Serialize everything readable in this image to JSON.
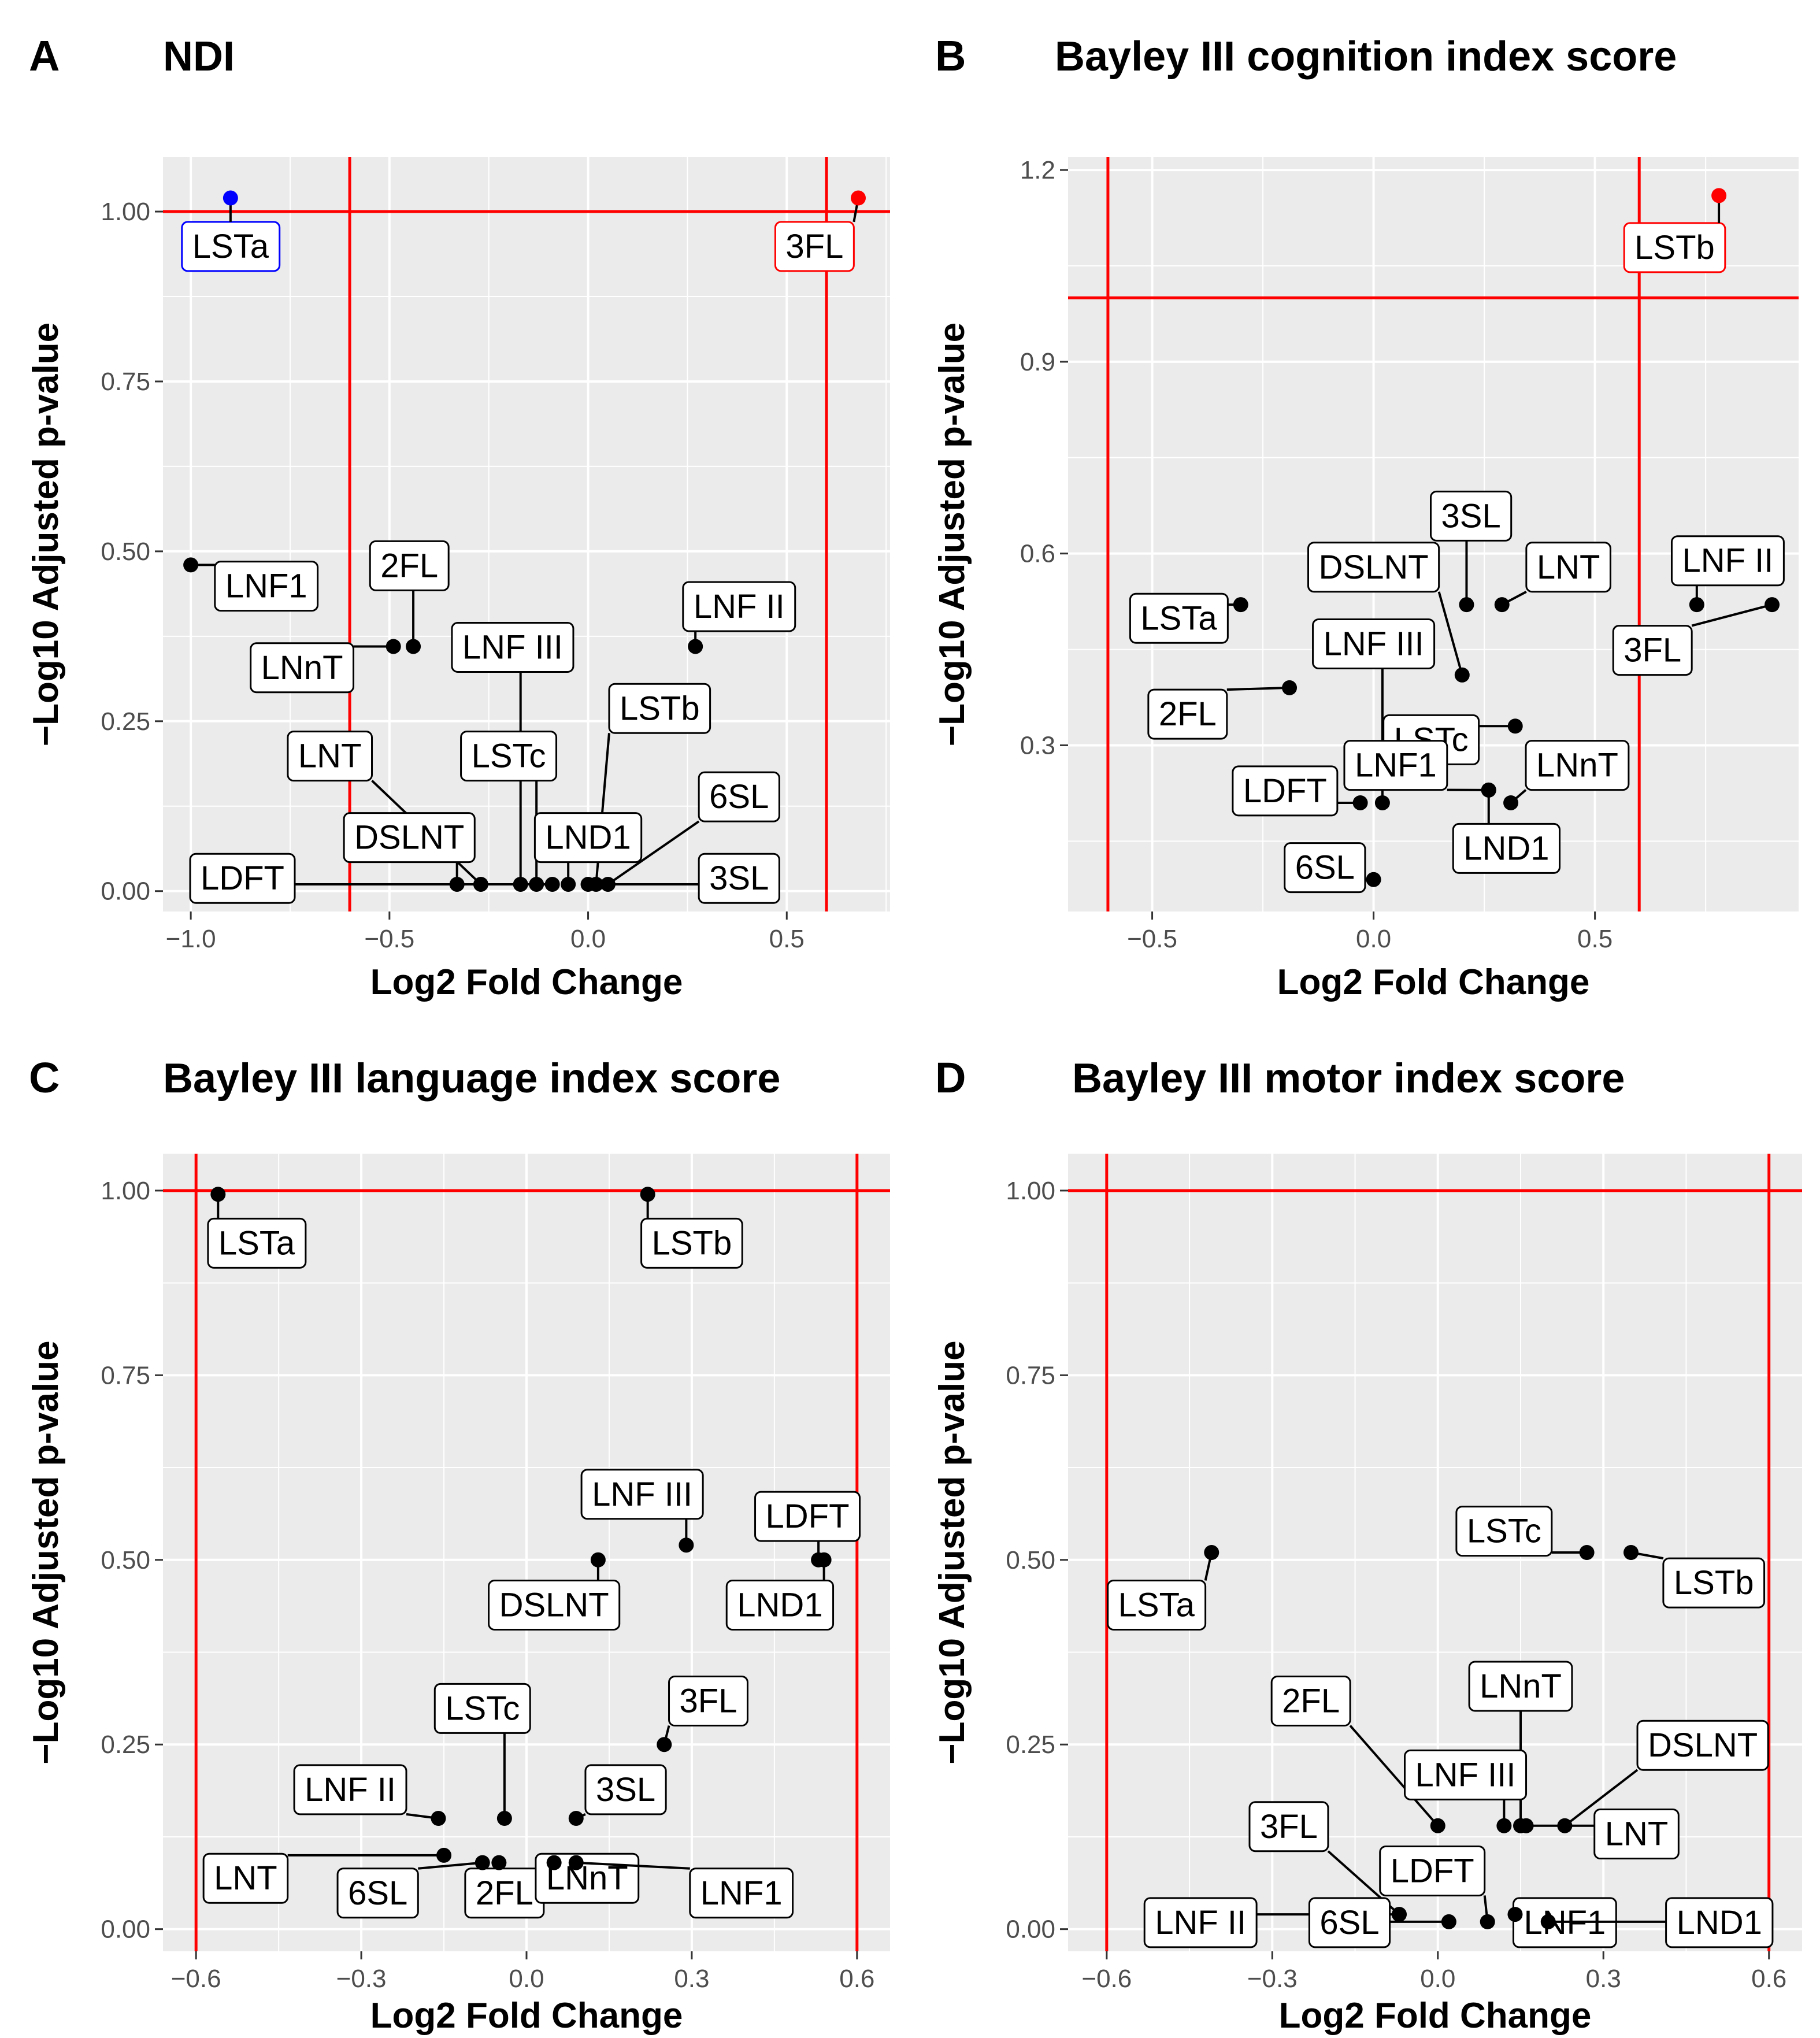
{
  "figure": {
    "background": "#ffffff",
    "panel_background": "#ebebeb",
    "grid_color": "#ffffff",
    "threshold_color": "#ff0000",
    "point_color": "#000000"
  },
  "chart_data": [
    {
      "type": "scatter",
      "letter": "A",
      "title": "NDI",
      "xlabel": "Log2 Fold Change",
      "ylabel": "−Log10 Adjusted p-value",
      "xlim": [
        -1.07,
        0.76
      ],
      "ylim": [
        -0.03,
        1.08
      ],
      "x_ticks": [
        -1.0,
        -0.5,
        0.0,
        0.5
      ],
      "x_tick_labels": [
        "−1.0",
        "−0.5",
        "0.0",
        "0.5"
      ],
      "y_ticks": [
        0.0,
        0.25,
        0.5,
        0.75,
        1.0
      ],
      "y_tick_labels": [
        "0.00",
        "0.25",
        "0.50",
        "0.75",
        "1.00"
      ],
      "vlines": [
        -0.6,
        0.6
      ],
      "hline": 1.0,
      "points": [
        {
          "label": "LSTa",
          "x": -0.9,
          "y": 1.02,
          "color": "#0000ff",
          "highlight": true,
          "lx": -0.9,
          "ly": 0.95
        },
        {
          "label": "3FL",
          "x": 0.68,
          "y": 1.02,
          "color": "#ff0000",
          "highlight": true,
          "lx": 0.57,
          "ly": 0.95
        },
        {
          "label": "LNF1",
          "x": -1.0,
          "y": 0.48,
          "color": "#000000",
          "lx": -0.81,
          "ly": 0.45
        },
        {
          "label": "2FL",
          "x": -0.44,
          "y": 0.36,
          "color": "#000000",
          "lx": -0.45,
          "ly": 0.48
        },
        {
          "label": "LNnT",
          "x": -0.49,
          "y": 0.36,
          "color": "#000000",
          "lx": -0.72,
          "ly": 0.33
        },
        {
          "label": "LNF III",
          "x": -0.17,
          "y": 0.01,
          "color": "#000000",
          "lx": -0.19,
          "ly": 0.36
        },
        {
          "label": "LNF II",
          "x": 0.27,
          "y": 0.36,
          "color": "#000000",
          "lx": 0.38,
          "ly": 0.42
        },
        {
          "label": "LSTb",
          "x": 0.02,
          "y": 0.01,
          "color": "#000000",
          "lx": 0.18,
          "ly": 0.27
        },
        {
          "label": "LNT",
          "x": -0.27,
          "y": 0.01,
          "color": "#000000",
          "lx": -0.65,
          "ly": 0.2
        },
        {
          "label": "LSTc",
          "x": -0.13,
          "y": 0.01,
          "color": "#000000",
          "lx": -0.2,
          "ly": 0.2
        },
        {
          "label": "6SL",
          "x": 0.05,
          "y": 0.01,
          "color": "#000000",
          "lx": 0.38,
          "ly": 0.14
        },
        {
          "label": "DSLNT",
          "x": -0.33,
          "y": 0.01,
          "color": "#000000",
          "lx": -0.45,
          "ly": 0.08
        },
        {
          "label": "LND1",
          "x": -0.05,
          "y": 0.01,
          "color": "#000000",
          "lx": 0.0,
          "ly": 0.08
        },
        {
          "label": "LDFT",
          "x": -0.09,
          "y": 0.01,
          "color": "#000000",
          "lx": -0.87,
          "ly": 0.02
        },
        {
          "label": "3SL",
          "x": 0.0,
          "y": 0.01,
          "color": "#000000",
          "lx": 0.38,
          "ly": 0.02
        }
      ]
    },
    {
      "type": "scatter",
      "letter": "B",
      "title": "Bayley III cognition index score",
      "xlabel": "Log2 Fold Change",
      "ylabel": "−Log10 Adjusted p-value",
      "xlim": [
        -0.69,
        0.96
      ],
      "ylim": [
        0.04,
        1.22
      ],
      "x_ticks": [
        -0.5,
        0.0,
        0.5
      ],
      "x_tick_labels": [
        "−0.5",
        "0.0",
        "0.5"
      ],
      "y_ticks": [
        0.3,
        0.6,
        0.9,
        1.2
      ],
      "y_tick_labels": [
        "0.3",
        "0.6",
        "0.9",
        "1.2"
      ],
      "vlines": [
        -0.6,
        0.6
      ],
      "hline": 1.0,
      "points": [
        {
          "label": "LSTb",
          "x": 0.78,
          "y": 1.16,
          "color": "#ff0000",
          "highlight": true,
          "lx": 0.68,
          "ly": 1.08
        },
        {
          "label": "3SL",
          "x": 0.21,
          "y": 0.52,
          "color": "#000000",
          "lx": 0.22,
          "ly": 0.66
        },
        {
          "label": "DSLNT",
          "x": 0.2,
          "y": 0.41,
          "color": "#000000",
          "lx": 0.0,
          "ly": 0.58
        },
        {
          "label": "LNT",
          "x": 0.29,
          "y": 0.52,
          "color": "#000000",
          "lx": 0.44,
          "ly": 0.58
        },
        {
          "label": "LNF II",
          "x": 0.73,
          "y": 0.52,
          "color": "#000000",
          "lx": 0.8,
          "ly": 0.59
        },
        {
          "label": "3FL",
          "x": 0.9,
          "y": 0.52,
          "color": "#000000",
          "lx": 0.63,
          "ly": 0.45
        },
        {
          "label": "LSTa",
          "x": -0.3,
          "y": 0.52,
          "color": "#000000",
          "lx": -0.44,
          "ly": 0.5
        },
        {
          "label": "LNF III",
          "x": 0.02,
          "y": 0.21,
          "color": "#000000",
          "lx": 0.0,
          "ly": 0.46
        },
        {
          "label": "2FL",
          "x": -0.19,
          "y": 0.39,
          "color": "#000000",
          "lx": -0.42,
          "ly": 0.35
        },
        {
          "label": "LSTc",
          "x": 0.32,
          "y": 0.33,
          "color": "#000000",
          "lx": 0.13,
          "ly": 0.31
        },
        {
          "label": "LNF1",
          "x": 0.26,
          "y": 0.23,
          "color": "#000000",
          "lx": 0.05,
          "ly": 0.27
        },
        {
          "label": "LNnT",
          "x": 0.31,
          "y": 0.21,
          "color": "#000000",
          "lx": 0.46,
          "ly": 0.27
        },
        {
          "label": "LDFT",
          "x": -0.03,
          "y": 0.21,
          "color": "#000000",
          "lx": -0.2,
          "ly": 0.23
        },
        {
          "label": "LND1",
          "x": 0.26,
          "y": 0.23,
          "color": "#000000",
          "lx": 0.3,
          "ly": 0.14
        },
        {
          "label": "6SL",
          "x": 0.0,
          "y": 0.09,
          "color": "#000000",
          "lx": -0.11,
          "ly": 0.11
        }
      ]
    },
    {
      "type": "scatter",
      "letter": "C",
      "title": "Bayley III language index score",
      "xlabel": "Log2 Fold Change",
      "ylabel": "−Log10 Adjusted p-value",
      "xlim": [
        -0.66,
        0.66
      ],
      "ylim": [
        -0.03,
        1.05
      ],
      "x_ticks": [
        -0.6,
        -0.3,
        0.0,
        0.3,
        0.6
      ],
      "x_tick_labels": [
        "−0.6",
        "−0.3",
        "0.0",
        "0.3",
        "0.6"
      ],
      "y_ticks": [
        0.0,
        0.25,
        0.5,
        0.75,
        1.0
      ],
      "y_tick_labels": [
        "0.00",
        "0.25",
        "0.50",
        "0.75",
        "1.00"
      ],
      "vlines": [
        -0.6,
        0.6
      ],
      "hline": 1.0,
      "points": [
        {
          "label": "LSTa",
          "x": -0.56,
          "y": 0.995,
          "color": "#000000",
          "lx": -0.49,
          "ly": 0.93
        },
        {
          "label": "LSTb",
          "x": 0.22,
          "y": 0.995,
          "color": "#000000",
          "lx": 0.3,
          "ly": 0.93
        },
        {
          "label": "LNF III",
          "x": 0.29,
          "y": 0.52,
          "color": "#000000",
          "lx": 0.21,
          "ly": 0.59
        },
        {
          "label": "LDFT",
          "x": 0.53,
          "y": 0.5,
          "color": "#000000",
          "lx": 0.51,
          "ly": 0.56
        },
        {
          "label": "DSLNT",
          "x": 0.13,
          "y": 0.5,
          "color": "#000000",
          "lx": 0.05,
          "ly": 0.44
        },
        {
          "label": "LND1",
          "x": 0.54,
          "y": 0.5,
          "color": "#000000",
          "lx": 0.46,
          "ly": 0.44
        },
        {
          "label": "3FL",
          "x": 0.25,
          "y": 0.25,
          "color": "#000000",
          "lx": 0.33,
          "ly": 0.31
        },
        {
          "label": "LSTc",
          "x": -0.04,
          "y": 0.15,
          "color": "#000000",
          "lx": -0.08,
          "ly": 0.3
        },
        {
          "label": "3SL",
          "x": 0.09,
          "y": 0.15,
          "color": "#000000",
          "lx": 0.18,
          "ly": 0.19
        },
        {
          "label": "LNF II",
          "x": -0.16,
          "y": 0.15,
          "color": "#000000",
          "lx": -0.32,
          "ly": 0.19
        },
        {
          "label": "LNT",
          "x": -0.15,
          "y": 0.1,
          "color": "#000000",
          "lx": -0.51,
          "ly": 0.07
        },
        {
          "label": "6SL",
          "x": -0.08,
          "y": 0.09,
          "color": "#000000",
          "lx": -0.27,
          "ly": 0.05
        },
        {
          "label": "2FL",
          "x": -0.05,
          "y": 0.09,
          "color": "#000000",
          "lx": -0.04,
          "ly": 0.05
        },
        {
          "label": "LNnT",
          "x": 0.05,
          "y": 0.09,
          "color": "#000000",
          "lx": 0.11,
          "ly": 0.07
        },
        {
          "label": "LNF1",
          "x": 0.09,
          "y": 0.09,
          "color": "#000000",
          "lx": 0.39,
          "ly": 0.05
        }
      ]
    },
    {
      "type": "scatter",
      "letter": "D",
      "title": "Bayley III motor index score",
      "xlabel": "Log2 Fold Change",
      "ylabel": "−Log10 Adjusted p-value",
      "xlim": [
        -0.67,
        0.66
      ],
      "ylim": [
        -0.03,
        1.05
      ],
      "x_ticks": [
        -0.6,
        -0.3,
        0.0,
        0.3,
        0.6
      ],
      "x_tick_labels": [
        "−0.6",
        "−0.3",
        "0.0",
        "0.3",
        "0.6"
      ],
      "y_ticks": [
        0.0,
        0.25,
        0.5,
        0.75,
        1.0
      ],
      "y_tick_labels": [
        "0.00",
        "0.25",
        "0.50",
        "0.75",
        "1.00"
      ],
      "vlines": [
        -0.6,
        0.6
      ],
      "hline": 1.0,
      "points": [
        {
          "label": "LSTa",
          "x": -0.41,
          "y": 0.51,
          "color": "#000000",
          "lx": -0.51,
          "ly": 0.44
        },
        {
          "label": "LSTc",
          "x": 0.27,
          "y": 0.51,
          "color": "#000000",
          "lx": 0.12,
          "ly": 0.54
        },
        {
          "label": "LSTb",
          "x": 0.35,
          "y": 0.51,
          "color": "#000000",
          "lx": 0.5,
          "ly": 0.47
        },
        {
          "label": "2FL",
          "x": 0.0,
          "y": 0.14,
          "color": "#000000",
          "lx": -0.23,
          "ly": 0.31
        },
        {
          "label": "LNnT",
          "x": 0.15,
          "y": 0.14,
          "color": "#000000",
          "lx": 0.15,
          "ly": 0.33
        },
        {
          "label": "DSLNT",
          "x": 0.23,
          "y": 0.14,
          "color": "#000000",
          "lx": 0.48,
          "ly": 0.25
        },
        {
          "label": "LNF III",
          "x": 0.12,
          "y": 0.14,
          "color": "#000000",
          "lx": 0.05,
          "ly": 0.21
        },
        {
          "label": "3FL",
          "x": -0.07,
          "y": 0.02,
          "color": "#000000",
          "lx": -0.27,
          "ly": 0.14
        },
        {
          "label": "LNT",
          "x": 0.16,
          "y": 0.14,
          "color": "#000000",
          "lx": 0.36,
          "ly": 0.13
        },
        {
          "label": "LDFT",
          "x": 0.09,
          "y": 0.01,
          "color": "#000000",
          "lx": -0.01,
          "ly": 0.08
        },
        {
          "label": "LNF II",
          "x": -0.07,
          "y": 0.02,
          "color": "#000000",
          "lx": -0.43,
          "ly": 0.01
        },
        {
          "label": "6SL",
          "x": 0.02,
          "y": 0.01,
          "color": "#000000",
          "lx": -0.16,
          "ly": 0.01
        },
        {
          "label": "LNF1",
          "x": 0.14,
          "y": 0.02,
          "color": "#000000",
          "lx": 0.23,
          "ly": 0.01
        },
        {
          "label": "LND1",
          "x": 0.2,
          "y": 0.01,
          "color": "#000000",
          "lx": 0.51,
          "ly": 0.01
        }
      ]
    }
  ]
}
